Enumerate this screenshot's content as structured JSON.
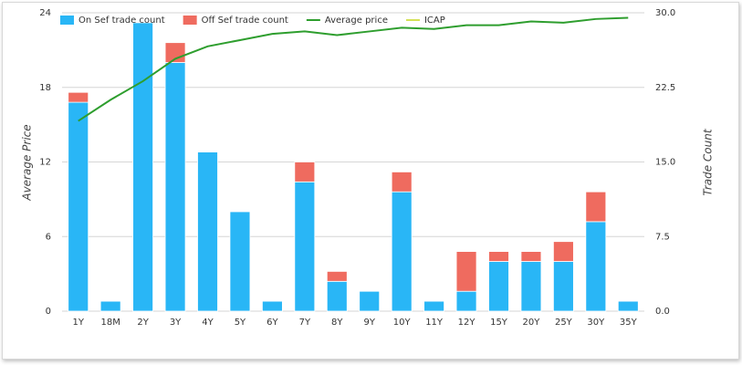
{
  "chart_data": {
    "type": "bar",
    "categories": [
      "1Y",
      "18M",
      "2Y",
      "3Y",
      "4Y",
      "5Y",
      "6Y",
      "7Y",
      "8Y",
      "9Y",
      "10Y",
      "11Y",
      "12Y",
      "15Y",
      "20Y",
      "25Y",
      "30Y",
      "35Y"
    ],
    "y_label": "Average Price",
    "y2_label": "Trade Count",
    "ylim": [
      0,
      24
    ],
    "yticks": [
      0,
      6,
      12,
      18,
      24
    ],
    "y2lim": [
      0,
      30
    ],
    "y2ticks": [
      {
        "value": 0,
        "label": "0.0"
      },
      {
        "value": 7.5,
        "label": "7.5"
      },
      {
        "value": 15,
        "label": "15.0"
      },
      {
        "value": 22.5,
        "label": "22.5"
      },
      {
        "value": 30,
        "label": "30.0"
      }
    ],
    "grid": true,
    "legend": "top-left",
    "series": [
      {
        "name": "On Sef trade count",
        "type": "bar",
        "stack": true,
        "axis": "y2",
        "color": "#29b6f6",
        "values": [
          21,
          1,
          29,
          25,
          16,
          10,
          1,
          13,
          3,
          2,
          12,
          1,
          2,
          5,
          5,
          5,
          9,
          1
        ]
      },
      {
        "name": "Off Sef trade count",
        "type": "bar",
        "stack": true,
        "axis": "y2",
        "color": "#ef6b5f",
        "values": [
          1,
          null,
          null,
          2,
          null,
          null,
          null,
          2,
          1,
          null,
          2,
          null,
          4,
          1,
          1,
          2,
          3,
          null
        ]
      },
      {
        "name": "Average price",
        "type": "line",
        "axis": "y",
        "color": "#2e9e2e",
        "values": [
          15.3,
          17.0,
          18.5,
          20.3,
          21.3,
          21.8,
          22.3,
          22.5,
          22.2,
          22.5,
          22.8,
          22.7,
          23.0,
          23.0,
          23.3,
          23.2,
          23.5,
          23.6
        ]
      },
      {
        "name": "ICAP",
        "type": "line",
        "axis": "y",
        "color": "#d4e157",
        "values": [
          null,
          null,
          null,
          null,
          null,
          null,
          null,
          null,
          null,
          null,
          null,
          null,
          null,
          null,
          null,
          null,
          null,
          null
        ]
      }
    ]
  }
}
